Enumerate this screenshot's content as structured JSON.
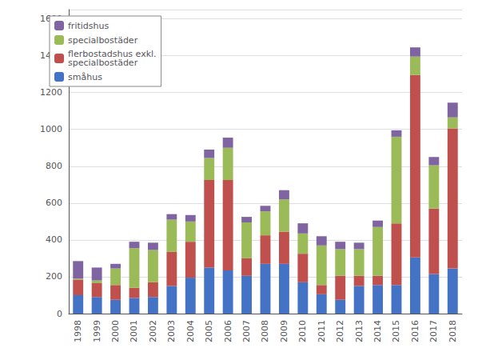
{
  "chart_data": {
    "type": "bar",
    "stacked": true,
    "categories": [
      "1998",
      "1999",
      "2000",
      "2001",
      "2002",
      "2003",
      "2004",
      "2005",
      "2006",
      "2007",
      "2008",
      "2009",
      "2010",
      "2011",
      "2012",
      "2013",
      "2014",
      "2015",
      "2016",
      "2017",
      "2018"
    ],
    "series": [
      {
        "name": "småhus",
        "color": "#4472C4",
        "values": [
          100,
          90,
          75,
          85,
          90,
          150,
          195,
          250,
          235,
          205,
          270,
          270,
          170,
          105,
          75,
          150,
          155,
          155,
          305,
          215,
          245
        ]
      },
      {
        "name": "flerbostadshus exkl.\nspecialbostäder",
        "color": "#C0504D",
        "values": [
          85,
          75,
          80,
          55,
          80,
          185,
          195,
          475,
          490,
          95,
          155,
          175,
          155,
          50,
          130,
          55,
          50,
          335,
          990,
          355,
          760
        ]
      },
      {
        "name": "specialbostäder",
        "color": "#9BBB59",
        "values": [
          5,
          15,
          90,
          215,
          175,
          175,
          110,
          120,
          175,
          195,
          130,
          175,
          110,
          215,
          145,
          145,
          265,
          470,
          100,
          235,
          60
        ]
      },
      {
        "name": "fritidshus",
        "color": "#8064A2",
        "values": [
          95,
          70,
          25,
          35,
          40,
          30,
          35,
          45,
          55,
          30,
          30,
          50,
          55,
          50,
          40,
          35,
          35,
          35,
          50,
          45,
          80
        ]
      }
    ],
    "ylim": [
      0,
      1650
    ],
    "yticks": [
      0,
      200,
      400,
      600,
      800,
      1000,
      1200,
      1400,
      1600
    ],
    "grid": true,
    "legend": "upper left"
  }
}
